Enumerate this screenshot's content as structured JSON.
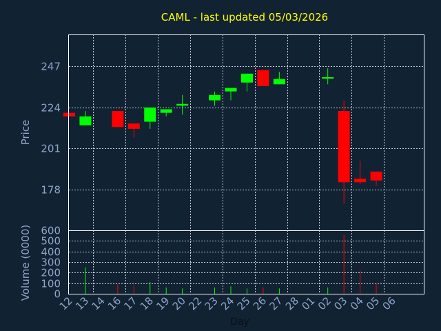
{
  "chart_data": [
    {
      "type": "candlestick",
      "title": "CAML - last updated 05/03/2026",
      "ylabel": "Price",
      "xlabel": "Day",
      "ylim": [
        155,
        265
      ],
      "yticks": [
        178,
        201,
        224,
        247
      ],
      "x_tick_labels": [
        "12",
        "13",
        "14",
        "16",
        "17",
        "18",
        "19",
        "20",
        "22",
        "23",
        "24",
        "25",
        "26",
        "27",
        "28",
        "01",
        "02",
        "03",
        "04",
        "05",
        "06"
      ],
      "grid": true,
      "colors": {
        "up": "#00ff00",
        "down": "#ff0000",
        "background": "#112233",
        "title": "#ffff00",
        "axis_text": "#8fa5c8"
      },
      "candles": [
        {
          "day": "12",
          "open": 221,
          "high": 221,
          "low": 219,
          "close": 219
        },
        {
          "day": "13",
          "open": 214,
          "high": 222,
          "low": 214,
          "close": 219
        },
        {
          "day": "16",
          "open": 222,
          "high": 222,
          "low": 213,
          "close": 213
        },
        {
          "day": "17",
          "open": 215,
          "high": 215,
          "low": 207,
          "close": 212
        },
        {
          "day": "18",
          "open": 216,
          "high": 224,
          "low": 212,
          "close": 224
        },
        {
          "day": "19",
          "open": 221,
          "high": 223,
          "low": 219,
          "close": 223
        },
        {
          "day": "20",
          "open": 225,
          "high": 231,
          "low": 220,
          "close": 226
        },
        {
          "day": "23",
          "open": 228,
          "high": 233,
          "low": 225,
          "close": 231
        },
        {
          "day": "24",
          "open": 233,
          "high": 235,
          "low": 228,
          "close": 235
        },
        {
          "day": "25",
          "open": 238,
          "high": 243,
          "low": 233,
          "close": 243
        },
        {
          "day": "26",
          "open": 245,
          "high": 245,
          "low": 236,
          "close": 236
        },
        {
          "day": "27",
          "open": 237,
          "high": 244,
          "low": 237,
          "close": 240
        },
        {
          "day": "02",
          "open": 241,
          "high": 246,
          "low": 237,
          "close": 241
        },
        {
          "day": "03",
          "open": 222,
          "high": 228,
          "low": 170,
          "close": 182
        },
        {
          "day": "04",
          "open": 184,
          "high": 194,
          "low": 181,
          "close": 182
        },
        {
          "day": "05",
          "open": 188,
          "high": 188,
          "low": 180,
          "close": 183
        }
      ]
    },
    {
      "type": "bar",
      "ylabel": "Volume (0000)",
      "ylim": [
        0,
        600
      ],
      "yticks": [
        0,
        100,
        200,
        300,
        400,
        500,
        600
      ],
      "volumes": [
        {
          "day": "13",
          "value": 250,
          "color": "#00ff00"
        },
        {
          "day": "16",
          "value": 90,
          "color": "#ff0000"
        },
        {
          "day": "17",
          "value": 80,
          "color": "#ff0000"
        },
        {
          "day": "18",
          "value": 110,
          "color": "#00ff00"
        },
        {
          "day": "19",
          "value": 60,
          "color": "#00ff00"
        },
        {
          "day": "20",
          "value": 50,
          "color": "#00ff00"
        },
        {
          "day": "23",
          "value": 60,
          "color": "#00ff00"
        },
        {
          "day": "24",
          "value": 70,
          "color": "#00ff00"
        },
        {
          "day": "25",
          "value": 50,
          "color": "#00ff00"
        },
        {
          "day": "26",
          "value": 60,
          "color": "#ff0000"
        },
        {
          "day": "27",
          "value": 50,
          "color": "#00ff00"
        },
        {
          "day": "02",
          "value": 60,
          "color": "#00ff00"
        },
        {
          "day": "03",
          "value": 560,
          "color": "#ff0000"
        },
        {
          "day": "04",
          "value": 220,
          "color": "#ff0000"
        },
        {
          "day": "05",
          "value": 100,
          "color": "#ff0000"
        }
      ]
    }
  ]
}
